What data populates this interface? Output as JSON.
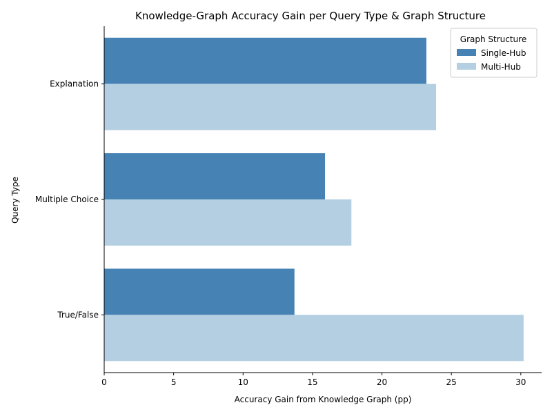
{
  "chart_data": {
    "type": "bar",
    "orientation": "horizontal",
    "title": "Knowledge-Graph Accuracy Gain per Query Type & Graph Structure",
    "xlabel": "Accuracy Gain from Knowledge Graph (pp)",
    "ylabel": "Query Type",
    "categories": [
      "Explanation",
      "Multiple Choice",
      "True/False"
    ],
    "series": [
      {
        "name": "Single-Hub",
        "values": [
          23.2,
          15.9,
          13.7
        ],
        "color": "#4682b4"
      },
      {
        "name": "Multi-Hub",
        "values": [
          23.9,
          17.8,
          30.2
        ],
        "color": "#b3cfe1"
      }
    ],
    "xlim": [
      0,
      31.5
    ],
    "xticks": [
      0,
      5,
      10,
      15,
      20,
      25,
      30
    ],
    "legend": {
      "title": "Graph Structure",
      "position": "top-right"
    },
    "grid": false
  }
}
